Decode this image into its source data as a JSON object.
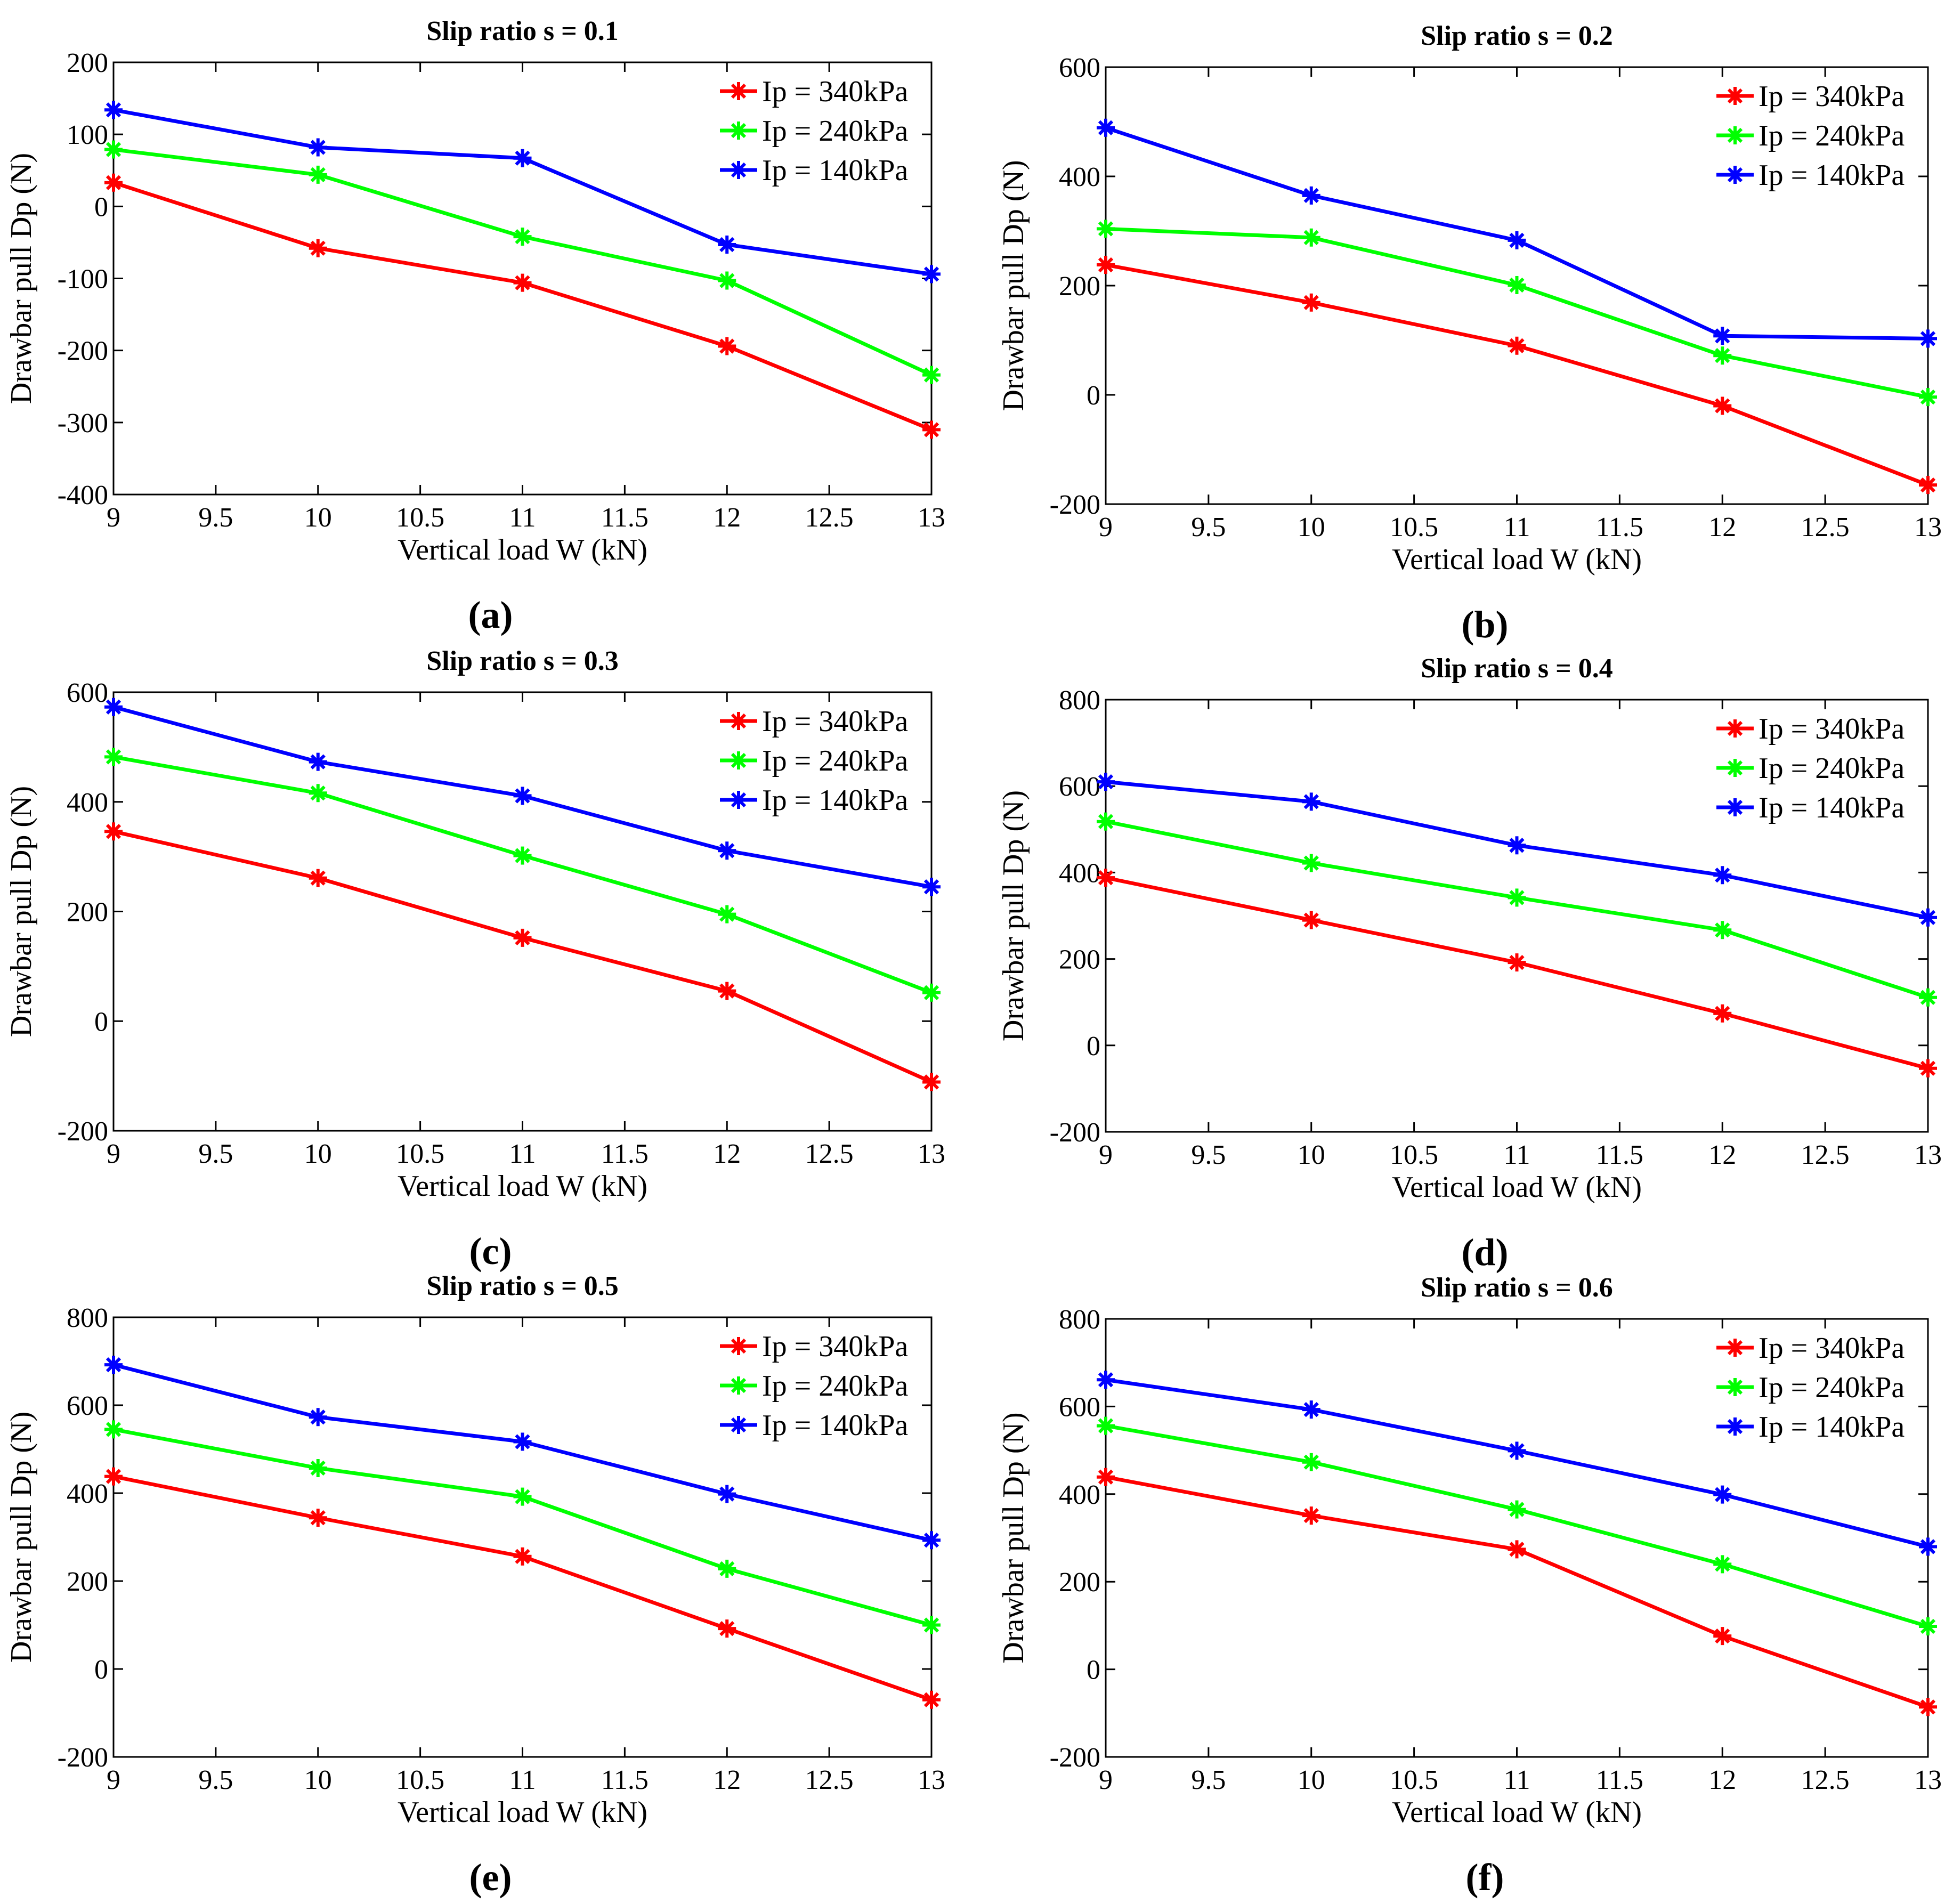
{
  "colors": {
    "red": "#ff0000",
    "green": "#00ff00",
    "blue": "#0000ff"
  },
  "chart_data": [
    {
      "type": "line",
      "panel": "(a)",
      "title": "Slip ratio s = 0.1",
      "xlabel": "Vertical load W (kN)",
      "ylabel": "Drawbar pull Dp (N)",
      "xlim": [
        9,
        13
      ],
      "ylim": [
        -400,
        200
      ],
      "xticks": [
        9,
        9.5,
        10,
        10.5,
        11,
        11.5,
        12,
        12.5,
        13
      ],
      "yticks": [
        -400,
        -300,
        -200,
        -100,
        0,
        100,
        200
      ],
      "x": [
        9,
        10,
        11,
        12,
        13
      ],
      "legend": "top-right",
      "series": [
        {
          "name": "Ip = 340kPa",
          "color": "red",
          "values": [
            33,
            -58,
            -106,
            -194,
            -310
          ]
        },
        {
          "name": "Ip = 240kPa",
          "color": "green",
          "values": [
            79,
            44,
            -42,
            -103,
            -234
          ]
        },
        {
          "name": "Ip = 140kPa",
          "color": "blue",
          "values": [
            134,
            82,
            67,
            -53,
            -94
          ]
        }
      ]
    },
    {
      "type": "line",
      "panel": "(b)",
      "title": "Slip ratio s = 0.2",
      "xlabel": "Vertical load W (kN)",
      "ylabel": "Drawbar pull Dp (N)",
      "xlim": [
        9,
        13
      ],
      "ylim": [
        -200,
        600
      ],
      "xticks": [
        9,
        9.5,
        10,
        10.5,
        11,
        11.5,
        12,
        12.5,
        13
      ],
      "yticks": [
        -200,
        0,
        200,
        400,
        600
      ],
      "x": [
        9,
        10,
        11,
        12,
        13
      ],
      "legend": "top-right",
      "series": [
        {
          "name": "Ip = 340kPa",
          "color": "red",
          "values": [
            238,
            169,
            90,
            -20,
            -165
          ]
        },
        {
          "name": "Ip = 240kPa",
          "color": "green",
          "values": [
            304,
            288,
            201,
            72,
            -4
          ]
        },
        {
          "name": "Ip = 140kPa",
          "color": "blue",
          "values": [
            489,
            365,
            283,
            108,
            103
          ]
        }
      ]
    },
    {
      "type": "line",
      "panel": "(c)",
      "title": "Slip ratio s = 0.3",
      "xlabel": "Vertical load W (kN)",
      "ylabel": "Drawbar pull Dp (N)",
      "xlim": [
        9,
        13
      ],
      "ylim": [
        -200,
        600
      ],
      "xticks": [
        9,
        9.5,
        10,
        10.5,
        11,
        11.5,
        12,
        12.5,
        13
      ],
      "yticks": [
        -200,
        0,
        200,
        400,
        600
      ],
      "x": [
        9,
        10,
        11,
        12,
        13
      ],
      "legend": "top-right",
      "series": [
        {
          "name": "Ip = 340kPa",
          "color": "red",
          "values": [
            346,
            261,
            152,
            55,
            -111
          ]
        },
        {
          "name": "Ip = 240kPa",
          "color": "green",
          "values": [
            482,
            416,
            302,
            195,
            52
          ]
        },
        {
          "name": "Ip = 140kPa",
          "color": "blue",
          "values": [
            573,
            473,
            411,
            311,
            245
          ]
        }
      ]
    },
    {
      "type": "line",
      "panel": "(d)",
      "title": "Slip ratio s = 0.4",
      "xlabel": "Vertical load W (kN)",
      "ylabel": "Drawbar pull Dp (N)",
      "xlim": [
        9,
        13
      ],
      "ylim": [
        -200,
        800
      ],
      "xticks": [
        9,
        9.5,
        10,
        10.5,
        11,
        11.5,
        12,
        12.5,
        13
      ],
      "yticks": [
        -200,
        0,
        200,
        400,
        600,
        800
      ],
      "x": [
        9,
        10,
        11,
        12,
        13
      ],
      "legend": "top-right",
      "series": [
        {
          "name": "Ip = 340kPa",
          "color": "red",
          "values": [
            388,
            290,
            192,
            74,
            -53
          ]
        },
        {
          "name": "Ip = 240kPa",
          "color": "green",
          "values": [
            518,
            422,
            342,
            267,
            111
          ]
        },
        {
          "name": "Ip = 140kPa",
          "color": "blue",
          "values": [
            610,
            564,
            463,
            394,
            296
          ]
        }
      ]
    },
    {
      "type": "line",
      "panel": "(e)",
      "title": "Slip ratio s = 0.5",
      "xlabel": "Vertical load W (kN)",
      "ylabel": "Drawbar pull Dp (N)",
      "xlim": [
        9,
        13
      ],
      "ylim": [
        -200,
        800
      ],
      "xticks": [
        9,
        9.5,
        10,
        10.5,
        11,
        11.5,
        12,
        12.5,
        13
      ],
      "yticks": [
        -200,
        0,
        200,
        400,
        600,
        800
      ],
      "x": [
        9,
        10,
        11,
        12,
        13
      ],
      "legend": "top-right",
      "series": [
        {
          "name": "Ip = 340kPa",
          "color": "red",
          "values": [
            438,
            344,
            256,
            92,
            -70
          ]
        },
        {
          "name": "Ip = 240kPa",
          "color": "green",
          "values": [
            545,
            457,
            392,
            228,
            100
          ]
        },
        {
          "name": "Ip = 140kPa",
          "color": "blue",
          "values": [
            692,
            573,
            517,
            398,
            293
          ]
        }
      ]
    },
    {
      "type": "line",
      "panel": "(f)",
      "title": "Slip ratio s = 0.6",
      "xlabel": "Vertical load W (kN)",
      "ylabel": "Drawbar pull Dp (N)",
      "xlim": [
        9,
        13
      ],
      "ylim": [
        -200,
        800
      ],
      "xticks": [
        9,
        9.5,
        10,
        10.5,
        11,
        11.5,
        12,
        12.5,
        13
      ],
      "yticks": [
        -200,
        0,
        200,
        400,
        600,
        800
      ],
      "x": [
        9,
        10,
        11,
        12,
        13
      ],
      "legend": "top-right",
      "series": [
        {
          "name": "Ip = 340kPa",
          "color": "red",
          "values": [
            439,
            351,
            274,
            76,
            -86
          ]
        },
        {
          "name": "Ip = 240kPa",
          "color": "green",
          "values": [
            556,
            473,
            365,
            240,
            98
          ]
        },
        {
          "name": "Ip = 140kPa",
          "color": "blue",
          "values": [
            661,
            593,
            499,
            399,
            280
          ]
        }
      ]
    }
  ]
}
